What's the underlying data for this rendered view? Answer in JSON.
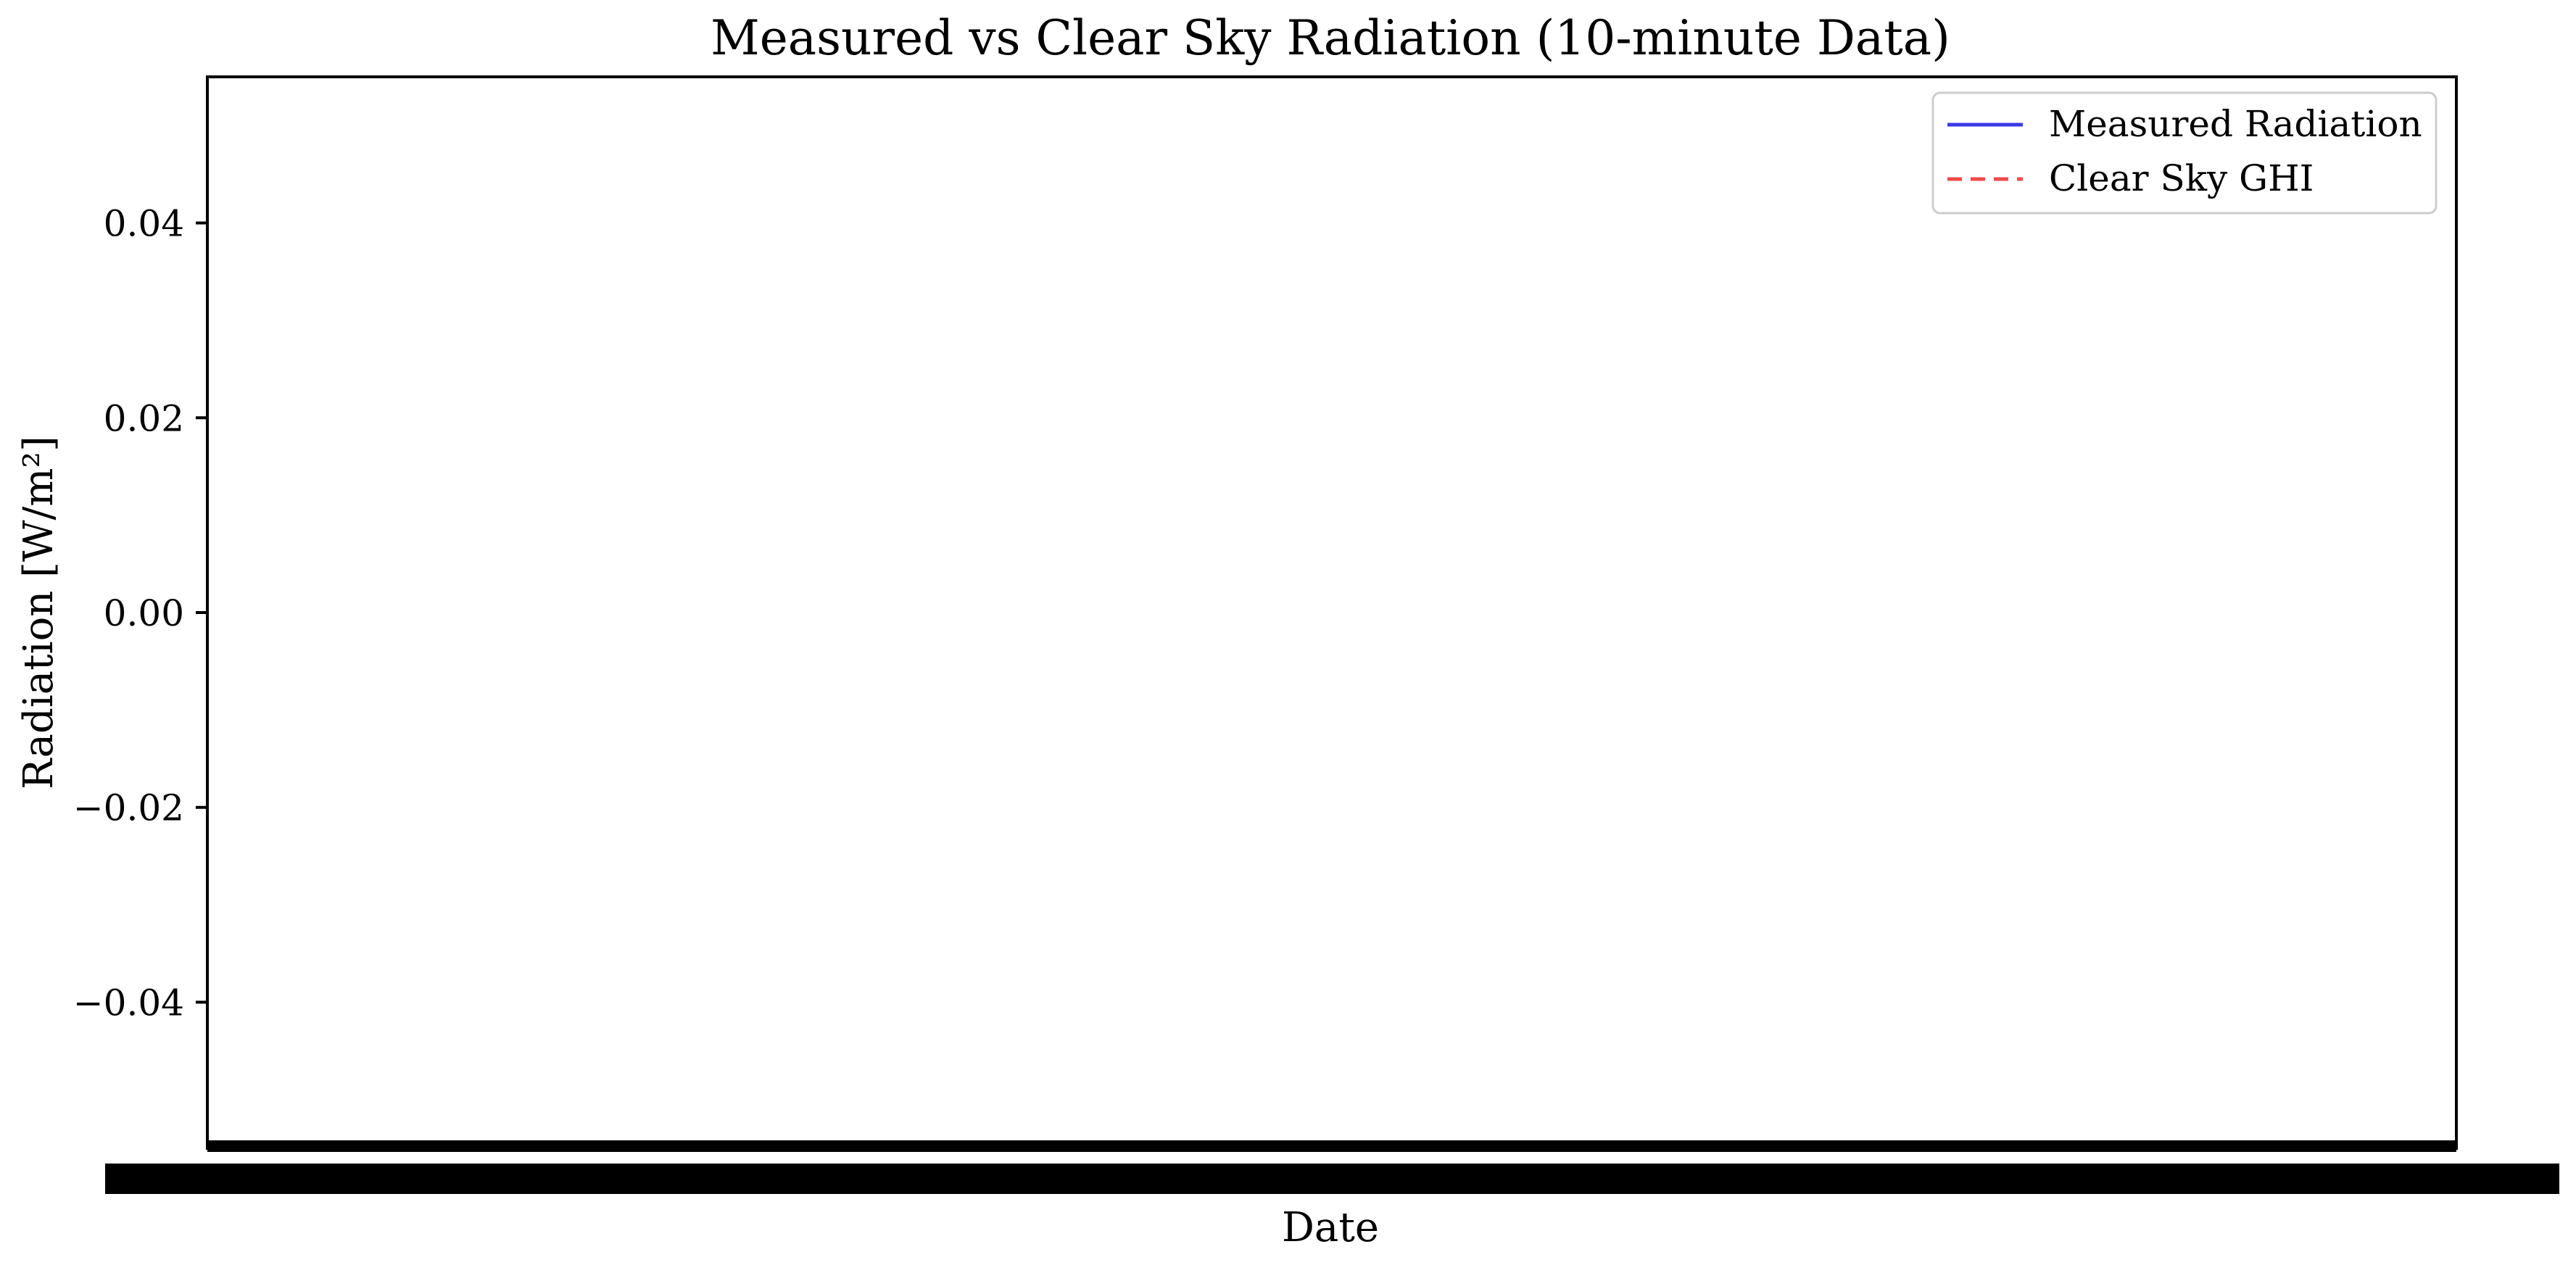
{
  "chart_data": {
    "type": "line",
    "title": "Measured vs Clear Sky Radiation (10-minute Data)",
    "xlabel": "Date",
    "ylabel": "Radiation [W/m²]",
    "ylim": [
      -0.055,
      0.055
    ],
    "yticks": [
      -0.04,
      -0.02,
      0.0,
      0.02,
      0.04
    ],
    "ytick_labels": [
      "−0.04",
      "−0.02",
      "0.00",
      "0.02",
      "0.04"
    ],
    "xtick_labels_note": "x tick labels are densely overlapped and unreadable",
    "grid": false,
    "legend_position": "top-right",
    "series": [
      {
        "name": "Measured Radiation",
        "color": "#3a3ae8",
        "linestyle": "solid",
        "values": []
      },
      {
        "name": "Clear Sky GHI",
        "color": "#f04a4a",
        "linestyle": "dashed",
        "values": []
      }
    ]
  }
}
